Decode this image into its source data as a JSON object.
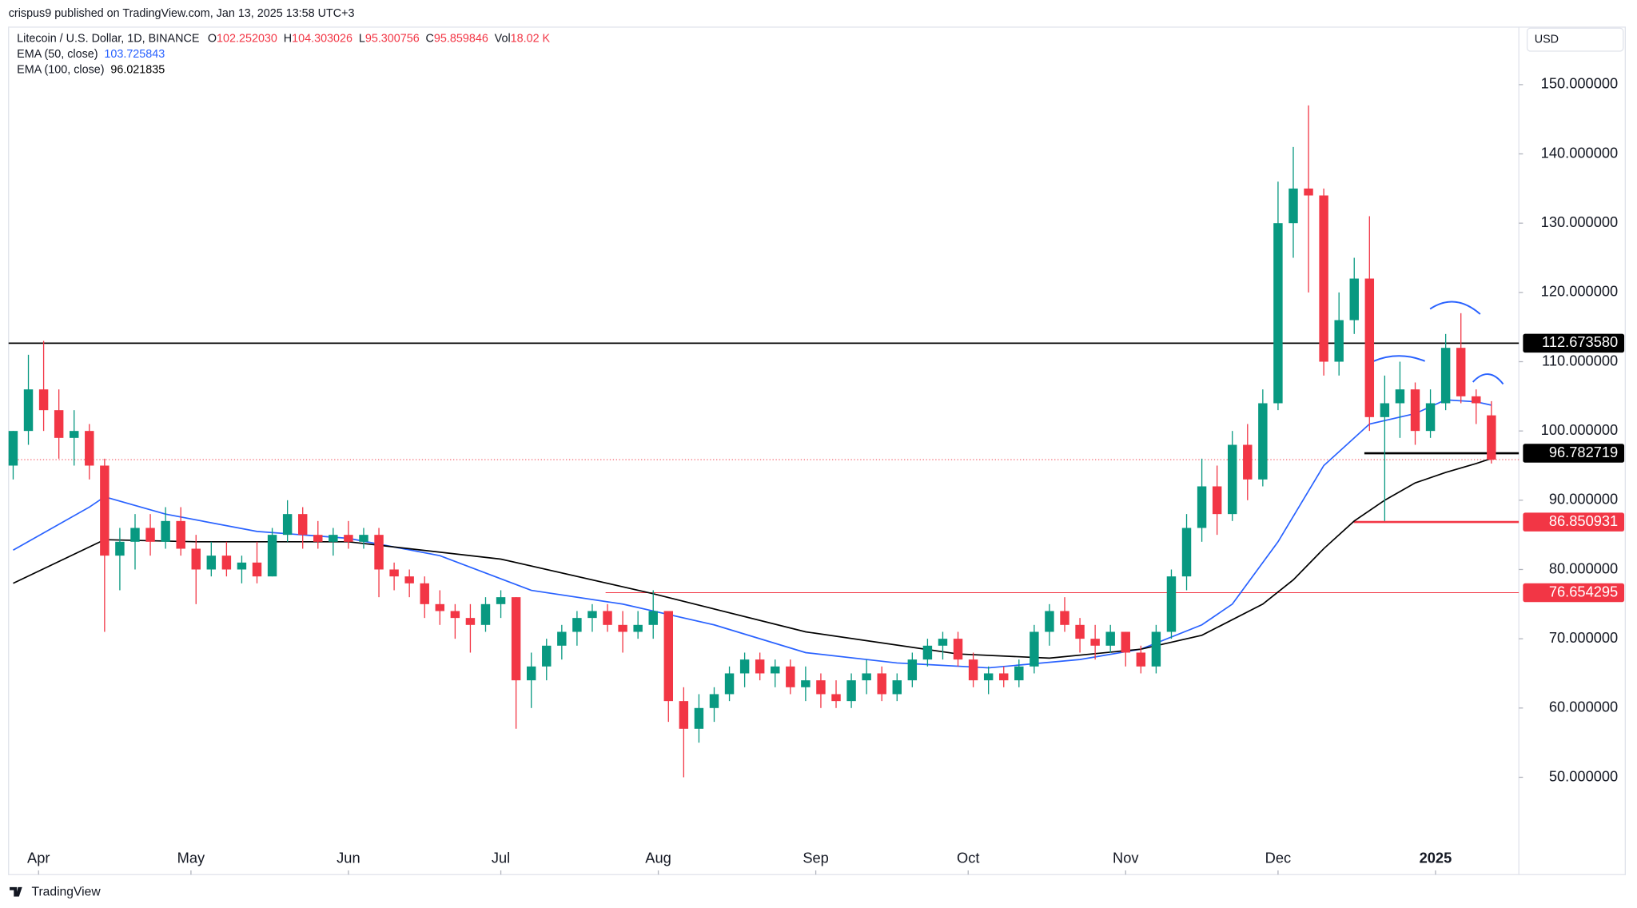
{
  "header": {
    "published": "crispus9 published on TradingView.com, Jan 13, 2025 13:58 UTC+3",
    "currency": "USD",
    "brand": "TradingView"
  },
  "chart_data": {
    "type": "candlestick",
    "title": "Litecoin / U.S. Dollar, 1D, BINANCE",
    "last_labels": [
      {
        "key": "O",
        "value": "102.252030"
      },
      {
        "key": "H",
        "value": "104.303026"
      },
      {
        "key": "L",
        "value": "95.300756"
      },
      {
        "key": "C",
        "value": "95.859846"
      },
      {
        "key": "Vol",
        "value": "18.02 K"
      }
    ],
    "up_color": "#089981",
    "down_color": "#f23645",
    "open": [
      95,
      100,
      106,
      103,
      99,
      100,
      95,
      82,
      84,
      86,
      84,
      87,
      83,
      80,
      82,
      80,
      81,
      79,
      85,
      88,
      85,
      84,
      85,
      84,
      85,
      80,
      79,
      78,
      75,
      74,
      73,
      72,
      75,
      76,
      64,
      66,
      69,
      71,
      73,
      74,
      72,
      71,
      72,
      74,
      61,
      57,
      60,
      62,
      65,
      67,
      65,
      66,
      63,
      64,
      62,
      61,
      64,
      65,
      62,
      64,
      67,
      69,
      70,
      67,
      64,
      65,
      64,
      66,
      71,
      74,
      72,
      70,
      69,
      71,
      68,
      66,
      71,
      79,
      86,
      92,
      88,
      98,
      93,
      104,
      130,
      135,
      134,
      110,
      116,
      122,
      102,
      104,
      106,
      100,
      104,
      112,
      105,
      102.25203
    ],
    "high": [
      100,
      111,
      113,
      106,
      103,
      101,
      96,
      86,
      88,
      88,
      89,
      89,
      85,
      84,
      84,
      82,
      84,
      86,
      90,
      89,
      87,
      86,
      87,
      86,
      86,
      81,
      80,
      79,
      77,
      75,
      75,
      76,
      77,
      76,
      68,
      70,
      72,
      74,
      75,
      75,
      74,
      74,
      77,
      74,
      63,
      62,
      63,
      66,
      68,
      68,
      67,
      67,
      66,
      65,
      64,
      65,
      67,
      66,
      65,
      68,
      70,
      71,
      71,
      68,
      66,
      66,
      67,
      72,
      75,
      76,
      73,
      72,
      72,
      71,
      69,
      72,
      80,
      88,
      96,
      95,
      100,
      101,
      106,
      136,
      141,
      147,
      135,
      120,
      125,
      131,
      108,
      110,
      107,
      106,
      114,
      117,
      106,
      104.303026
    ],
    "low": [
      93,
      98,
      100,
      96,
      95,
      93,
      71,
      77,
      80,
      82,
      83,
      82,
      75,
      79,
      79,
      78,
      78,
      79,
      84,
      83,
      83,
      82,
      83,
      83,
      76,
      77,
      76,
      73,
      72,
      70,
      68,
      71,
      73,
      57,
      60,
      64,
      67,
      69,
      71,
      71,
      68,
      70,
      70,
      58,
      50,
      55,
      58,
      61,
      63,
      64,
      63,
      62,
      61,
      60,
      60,
      60,
      62,
      61,
      61,
      63,
      66,
      67,
      66,
      63,
      62,
      63,
      63,
      65,
      69,
      71,
      68,
      67,
      68,
      66,
      65,
      65,
      70,
      77,
      84,
      85,
      87,
      90,
      92,
      103,
      125,
      120,
      108,
      108,
      114,
      100,
      87,
      99,
      98,
      99,
      103,
      104,
      101,
      95.300756
    ],
    "close": [
      100,
      106,
      103,
      99,
      100,
      95,
      82,
      84,
      86,
      84,
      87,
      83,
      80,
      82,
      80,
      81,
      79,
      85,
      88,
      85,
      84,
      85,
      84,
      85,
      80,
      79,
      78,
      75,
      74,
      73,
      72,
      75,
      76,
      64,
      66,
      69,
      71,
      73,
      74,
      72,
      71,
      72,
      74,
      61,
      57,
      60,
      62,
      65,
      67,
      65,
      66,
      63,
      64,
      62,
      61,
      64,
      65,
      62,
      64,
      67,
      69,
      70,
      67,
      64,
      65,
      64,
      66,
      71,
      74,
      72,
      70,
      69,
      71,
      68,
      66,
      71,
      79,
      86,
      92,
      88,
      98,
      93,
      104,
      130,
      135,
      134,
      110,
      116,
      122,
      102,
      104,
      106,
      100,
      104,
      112,
      105,
      104,
      95.859846
    ],
    "series": [
      {
        "name": "EMA (50, close)",
        "color": "#2962ff",
        "x": [
          0,
          5,
          6,
          10,
          16,
          22,
          28,
          34,
          40,
          46,
          52,
          58,
          64,
          70,
          74,
          78,
          80,
          83,
          86,
          89,
          92,
          94,
          96,
          97
        ],
        "values": [
          82.8,
          89,
          90.5,
          88,
          85.5,
          84.5,
          82,
          77,
          75,
          72,
          68,
          66.5,
          65.8,
          67,
          68.5,
          72,
          75,
          84,
          95,
          101,
          102.5,
          104.5,
          104.2,
          103.725843
        ]
      },
      {
        "name": "EMA (100, close)",
        "color": "#000000",
        "x": [
          0,
          6,
          12,
          22,
          32,
          42,
          52,
          62,
          68,
          74,
          78,
          82,
          84,
          86,
          88,
          90,
          92,
          94,
          96,
          97
        ],
        "values": [
          78,
          84.3,
          84,
          84,
          81.5,
          76.5,
          71,
          67.8,
          67.2,
          68.5,
          70.5,
          75,
          78.5,
          83,
          87,
          90,
          92.5,
          94,
          95.3,
          96.021835
        ]
      }
    ],
    "levels": [
      {
        "value": 112.67358,
        "label": "112.673580",
        "color": "#000000"
      },
      {
        "value": 96.782719,
        "label": "96.782719",
        "color": "#000000"
      },
      {
        "value": 86.850931,
        "label": "86.850931",
        "color": "#f23645"
      },
      {
        "value": 76.654295,
        "label": "76.654295",
        "color": "#f23645"
      }
    ],
    "xlim": [
      -0.3,
      98.8
    ],
    "xticks": [
      {
        "value": 1.667,
        "label": "Apr"
      },
      {
        "value": 11.667,
        "label": "May"
      },
      {
        "value": 22,
        "label": "Jun"
      },
      {
        "value": 32,
        "label": "Jul"
      },
      {
        "value": 42.333,
        "label": "Aug"
      },
      {
        "value": 52.667,
        "label": "Sep"
      },
      {
        "value": 62.667,
        "label": "Oct"
      },
      {
        "value": 73,
        "label": "Nov"
      },
      {
        "value": 83,
        "label": "Dec"
      },
      {
        "value": 93.333,
        "label": "2025"
      }
    ],
    "ylim": [
      35.95,
      158.3
    ],
    "yticks": [
      {
        "value": 50,
        "label": "50.000000"
      },
      {
        "value": 60,
        "label": "60.000000"
      },
      {
        "value": 70,
        "label": "70.000000"
      },
      {
        "value": 80,
        "label": "80.000000"
      },
      {
        "value": 90,
        "label": "90.000000"
      },
      {
        "value": 100,
        "label": "100.000000"
      },
      {
        "value": 110,
        "label": "110.000000"
      },
      {
        "value": 120,
        "label": "120.000000"
      },
      {
        "value": 130,
        "label": "130.000000"
      },
      {
        "value": 140,
        "label": "140.000000"
      },
      {
        "value": 150,
        "label": "150.000000"
      }
    ]
  }
}
